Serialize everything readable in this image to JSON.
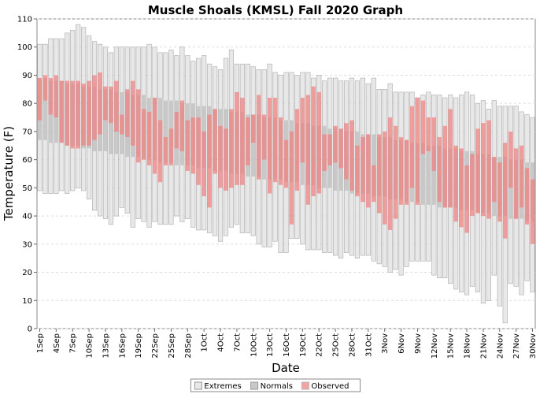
{
  "chart_data": {
    "type": "floating-bar",
    "title": "Muscle Shoals (KMSL) Fall 2020 Graph",
    "x_label": "Date",
    "y_label": "Temperature (F)",
    "categories": [
      "1Sep",
      null,
      null,
      "4Sep",
      null,
      null,
      "7Sep",
      null,
      null,
      "10Sep",
      null,
      null,
      "13Sep",
      null,
      null,
      "16Sep",
      null,
      null,
      "19Sep",
      null,
      null,
      "22Sep",
      null,
      null,
      "25Sep",
      null,
      null,
      "28Sep",
      null,
      null,
      "1Oct",
      null,
      null,
      "4Oct",
      null,
      null,
      "7Oct",
      null,
      null,
      "10Oct",
      null,
      null,
      "13Oct",
      null,
      null,
      "16Oct",
      null,
      null,
      "19Oct",
      null,
      null,
      "22Oct",
      null,
      null,
      "25Oct",
      null,
      null,
      "28Oct",
      null,
      null,
      "31Oct",
      null,
      null,
      "3Nov",
      null,
      null,
      "6Nov",
      null,
      null,
      "9Nov",
      null,
      null,
      "12Nov",
      null,
      null,
      "15Nov",
      null,
      null,
      "18Nov",
      null,
      null,
      "21Nov",
      null,
      null,
      "24Nov",
      null,
      null,
      "27Nov",
      null,
      null,
      "30Nov"
    ],
    "series": [
      {
        "name": "Extremes",
        "color": "#e8e8e8",
        "low": [
          49,
          48,
          48,
          48,
          49,
          48,
          49,
          50,
          49,
          46,
          42,
          40,
          39,
          37,
          40,
          43,
          41,
          36,
          39,
          38,
          36,
          38,
          37,
          37,
          37,
          40,
          38,
          39,
          36,
          35,
          35,
          34,
          33,
          31,
          33,
          36,
          37,
          34,
          34,
          33,
          30,
          29,
          29,
          31,
          27,
          27,
          32,
          32,
          30,
          28,
          28,
          28,
          27,
          27,
          26,
          25,
          27,
          26,
          25,
          26,
          26,
          24,
          23,
          22,
          20,
          21,
          19,
          22,
          24,
          24,
          24,
          24,
          19,
          18,
          18,
          16,
          14,
          13,
          12,
          15,
          13,
          9,
          10,
          19,
          8,
          2,
          16,
          15,
          12,
          17,
          13
        ],
        "high": [
          101,
          101,
          103,
          103,
          103,
          105,
          106,
          108,
          107,
          104,
          102,
          101,
          100,
          98,
          100,
          100,
          100,
          100,
          100,
          100,
          101,
          100,
          98,
          98,
          99,
          97,
          100,
          97,
          95,
          96,
          97,
          94,
          93,
          92,
          96,
          99,
          94,
          94,
          94,
          93,
          92,
          92,
          94,
          91,
          90,
          91,
          91,
          90,
          91,
          91,
          89,
          90,
          88,
          89,
          89,
          88,
          88,
          89,
          88,
          89,
          87,
          89,
          85,
          85,
          87,
          84,
          84,
          84,
          84,
          82,
          83,
          84,
          83,
          83,
          82,
          83,
          82,
          83,
          84,
          83,
          80,
          81,
          78,
          81,
          79,
          79,
          79,
          79,
          77,
          76,
          75
        ]
      },
      {
        "name": "Normals",
        "color": "#c8c8c8",
        "low": [
          67,
          67,
          66,
          66,
          66,
          65,
          65,
          65,
          64,
          64,
          63,
          63,
          63,
          62,
          62,
          62,
          61,
          61,
          61,
          60,
          60,
          60,
          59,
          59,
          59,
          58,
          58,
          58,
          58,
          57,
          57,
          57,
          56,
          56,
          56,
          55,
          55,
          55,
          54,
          54,
          54,
          53,
          53,
          53,
          53,
          52,
          52,
          52,
          51,
          51,
          51,
          50,
          50,
          50,
          49,
          49,
          49,
          48,
          48,
          48,
          48,
          47,
          47,
          47,
          46,
          46,
          46,
          45,
          45,
          45,
          44,
          44,
          44,
          43,
          43,
          43,
          43,
          42,
          42,
          42,
          41,
          41,
          41,
          40,
          40,
          40,
          39,
          39,
          39,
          38,
          38
        ],
        "high": [
          89,
          89,
          88,
          88,
          88,
          87,
          87,
          87,
          86,
          86,
          86,
          85,
          85,
          85,
          84,
          84,
          84,
          83,
          83,
          83,
          82,
          82,
          82,
          81,
          81,
          81,
          80,
          80,
          80,
          79,
          79,
          79,
          78,
          78,
          78,
          77,
          77,
          77,
          76,
          76,
          76,
          75,
          75,
          75,
          74,
          74,
          74,
          73,
          73,
          73,
          72,
          72,
          72,
          71,
          71,
          71,
          70,
          70,
          70,
          69,
          69,
          69,
          68,
          68,
          68,
          67,
          67,
          67,
          66,
          66,
          66,
          65,
          65,
          65,
          64,
          64,
          64,
          63,
          63,
          63,
          62,
          62,
          62,
          61,
          61,
          61,
          60,
          60,
          60,
          59,
          59
        ]
      },
      {
        "name": "Observed",
        "color": "#f08080",
        "low": [
          74,
          81,
          76,
          75,
          66,
          65,
          64,
          64,
          65,
          65,
          67,
          69,
          74,
          73,
          70,
          69,
          68,
          65,
          59,
          60,
          58,
          55,
          52,
          58,
          58,
          64,
          63,
          56,
          55,
          51,
          47,
          43,
          55,
          50,
          49,
          50,
          51,
          51,
          58,
          66,
          53,
          60,
          48,
          52,
          51,
          50,
          37,
          49,
          59,
          44,
          47,
          48,
          56,
          58,
          59,
          57,
          53,
          49,
          47,
          45,
          43,
          45,
          41,
          37,
          35,
          39,
          44,
          44,
          50,
          44,
          62,
          63,
          56,
          45,
          43,
          43,
          38,
          36,
          34,
          40,
          41,
          40,
          39,
          45,
          38,
          32,
          50,
          39,
          43,
          37,
          30
        ],
        "high": [
          89,
          90,
          89,
          90,
          88,
          88,
          88,
          88,
          87,
          88,
          90,
          91,
          86,
          86,
          88,
          76,
          85,
          88,
          85,
          78,
          77,
          82,
          74,
          68,
          71,
          77,
          81,
          74,
          75,
          75,
          70,
          76,
          78,
          72,
          71,
          78,
          84,
          82,
          75,
          76,
          83,
          76,
          82,
          82,
          75,
          67,
          70,
          78,
          82,
          83,
          86,
          84,
          69,
          69,
          72,
          71,
          73,
          74,
          65,
          68,
          69,
          58,
          69,
          70,
          75,
          72,
          68,
          67,
          79,
          82,
          81,
          75,
          75,
          68,
          72,
          78,
          65,
          64,
          58,
          62,
          71,
          73,
          74,
          61,
          59,
          66,
          70,
          64,
          65,
          57,
          53
        ]
      }
    ],
    "ylim": [
      0,
      110
    ],
    "yticks": [
      0,
      10,
      20,
      30,
      40,
      50,
      60,
      70,
      80,
      90,
      100,
      110
    ],
    "grid": true,
    "legend": "bottom"
  }
}
